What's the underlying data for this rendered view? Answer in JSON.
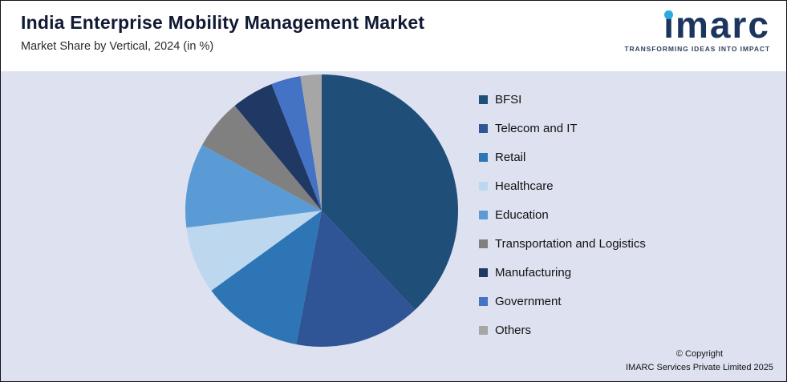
{
  "header": {
    "title": "India Enterprise Mobility Management Market",
    "subtitle": "Market Share by Vertical, 2024 (in %)"
  },
  "logo": {
    "wordmark": "imarc",
    "tagline": "TRANSFORMING IDEAS INTO IMPACT"
  },
  "footer": {
    "copyright_line1": "© Copyright",
    "copyright_line2": "IMARC Services Private Limited 2025"
  },
  "theme": {
    "background": "#DDE1F0",
    "header_background": "#FFFFFF",
    "title_color": "#111A33",
    "logo_navy": "#1C355E",
    "logo_cyan": "#29ABE2"
  },
  "chart_data": {
    "type": "pie",
    "title": "India Enterprise Mobility Management Market",
    "subtitle": "Market Share by Vertical, 2024 (in %)",
    "unit": "%",
    "legend_position": "right",
    "direction": "clockwise",
    "start_angle_deg": 0,
    "labels": [
      "BFSI",
      "Telecom and IT",
      "Retail",
      "Healthcare",
      "Education",
      "Transportation and Logistics",
      "Manufacturing",
      "Government",
      "Others"
    ],
    "values": [
      38,
      15,
      12,
      8,
      10,
      6,
      5,
      3.5,
      2.5
    ],
    "colors": [
      "#1F4E79",
      "#2F5597",
      "#2E75B6",
      "#BDD7EE",
      "#5B9BD5",
      "#808080",
      "#1F3864",
      "#4472C4",
      "#A6A6A6"
    ]
  }
}
